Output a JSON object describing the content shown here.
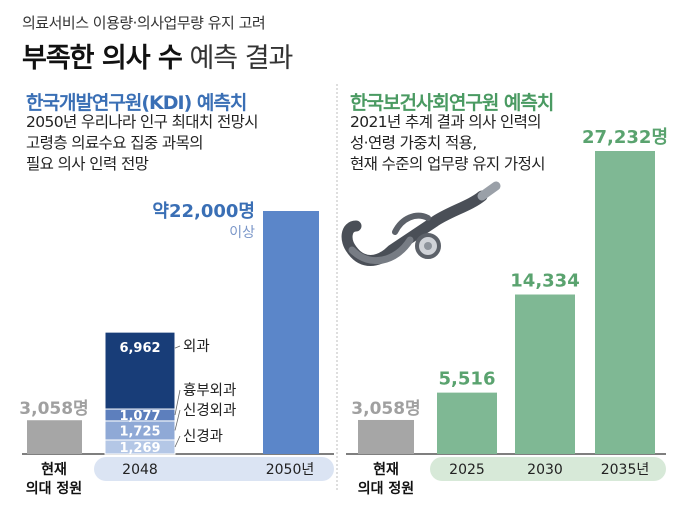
{
  "header": {
    "subtitle": "의료서비스 이용량·의사업무량 유지 고려",
    "title_bold": "부족한 의사 수",
    "title_light": "예측 결과"
  },
  "left_panel": {
    "title": "한국개발연구원(KDI) 예측치",
    "desc": [
      "2050년 우리나라 인구 최대치 전망시",
      "고령층 의료수요 집중 과목의",
      "필요 의사 인력 전망"
    ]
  },
  "right_panel": {
    "title": "한국보건사회연구원 예측치",
    "desc": [
      "2021년 추계 결과 의사 인력의",
      "성·연령 가중치 적용,",
      "현재 수준의 업무량 유지 가정시"
    ]
  },
  "colors": {
    "gray_bar": "#a6a6a6",
    "kdi_title": "#3a6fb5",
    "navy": "#183d78",
    "mid_blue": "#5d7fbd",
    "light_blue": "#8fa9d6",
    "lighter_blue": "#b4c7e6",
    "kdi_2050": "#5b86c9",
    "green_bar": "#7fb894",
    "green_text": "#5aa36f",
    "left_axis_bg": "#dbe4f3",
    "right_axis_bg": "#d7e9d8"
  },
  "chart_data": [
    {
      "type": "bar",
      "baseline": {
        "label_line1": "현재",
        "label_line2": "의대 정원",
        "value": 3058,
        "value_label": "3,058명"
      },
      "categories": [
        "2048",
        "2050년"
      ],
      "stack_2048": [
        {
          "name": "신경과",
          "value": 1269,
          "label": "1,269"
        },
        {
          "name": "신경외과",
          "value": 1725,
          "label": "1,725"
        },
        {
          "name": "흉부외과",
          "value": 1077,
          "label": "1,077"
        },
        {
          "name": "외과",
          "value": 6962,
          "label": "6,962"
        }
      ],
      "bar_2050": {
        "value": 22000,
        "label": "약22,000명",
        "note": "이상"
      }
    },
    {
      "type": "bar",
      "baseline": {
        "label_line1": "현재",
        "label_line2": "의대 정원",
        "value": 3058,
        "value_label": "3,058명"
      },
      "categories": [
        "2025",
        "2030",
        "2035년"
      ],
      "values": [
        5516,
        14334,
        27232
      ],
      "value_labels": [
        "5,516",
        "14,334",
        "27,232명"
      ]
    }
  ]
}
